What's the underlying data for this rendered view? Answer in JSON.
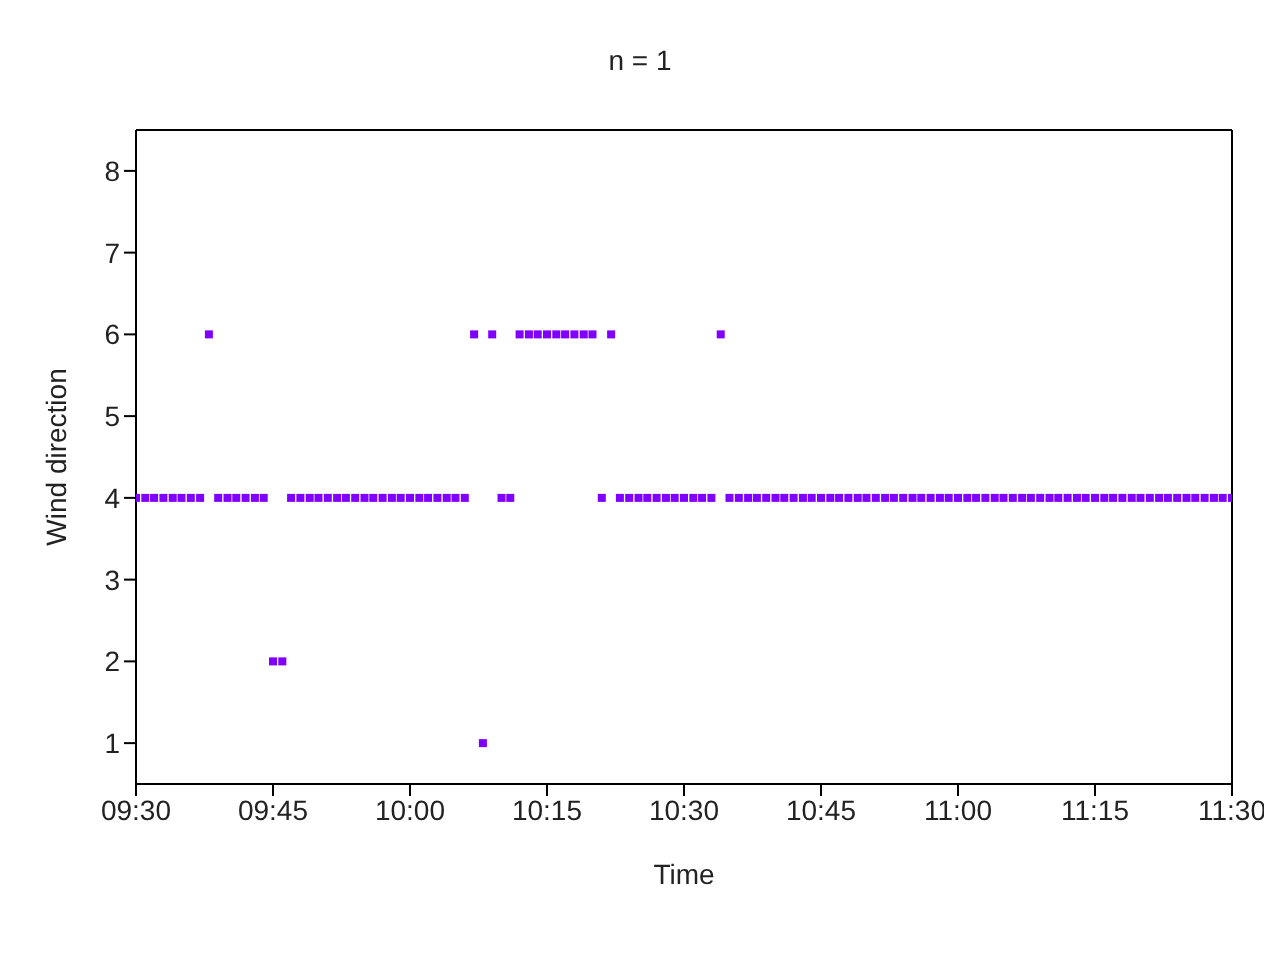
{
  "chart_data": {
    "type": "scatter",
    "title": "n = 1",
    "xlabel": "Time",
    "ylabel": "Wind direction",
    "xlim": [
      9.5,
      11.5
    ],
    "xticks": [
      {
        "value": 9.5,
        "label": "09:30"
      },
      {
        "value": 9.75,
        "label": "09:45"
      },
      {
        "value": 10,
        "label": "10:00"
      },
      {
        "value": 10.25,
        "label": "10:15"
      },
      {
        "value": 10.5,
        "label": "10:30"
      },
      {
        "value": 10.75,
        "label": "10:45"
      },
      {
        "value": 11,
        "label": "11:00"
      },
      {
        "value": 11.25,
        "label": "11:15"
      },
      {
        "value": 11.5,
        "label": "11:30"
      }
    ],
    "ylim": [
      0.5,
      8.5
    ],
    "yticks": [
      1,
      2,
      3,
      4,
      5,
      6,
      7,
      8
    ],
    "grid": false,
    "legend": false,
    "marker": "square",
    "x": [
      9.5,
      9.517,
      9.533,
      9.55,
      9.567,
      9.583,
      9.6,
      9.617,
      9.633,
      9.65,
      9.667,
      9.683,
      9.7,
      9.717,
      9.733,
      9.75,
      9.767,
      9.783,
      9.8,
      9.817,
      9.833,
      9.85,
      9.867,
      9.883,
      9.9,
      9.917,
      9.933,
      9.95,
      9.967,
      9.983,
      10,
      10.017,
      10.033,
      10.05,
      10.067,
      10.083,
      10.1,
      10.117,
      10.133,
      10.15,
      10.167,
      10.183,
      10.2,
      10.217,
      10.233,
      10.25,
      10.267,
      10.283,
      10.3,
      10.317,
      10.333,
      10.35,
      10.367,
      10.383,
      10.4,
      10.417,
      10.433,
      10.45,
      10.467,
      10.483,
      10.5,
      10.517,
      10.533,
      10.55,
      10.567,
      10.583,
      10.6,
      10.617,
      10.633,
      10.65,
      10.667,
      10.683,
      10.7,
      10.717,
      10.733,
      10.75,
      10.767,
      10.783,
      10.8,
      10.817,
      10.833,
      10.85,
      10.867,
      10.883,
      10.9,
      10.917,
      10.933,
      10.95,
      10.967,
      10.983,
      11,
      11.017,
      11.033,
      11.05,
      11.067,
      11.083,
      11.1,
      11.117,
      11.133,
      11.15,
      11.167,
      11.183,
      11.2,
      11.217,
      11.233,
      11.25,
      11.267,
      11.283,
      11.3,
      11.317,
      11.333,
      11.35,
      11.367,
      11.383,
      11.4,
      11.417,
      11.433,
      11.45,
      11.467,
      11.483,
      11.5
    ],
    "series": [
      {
        "color": "#7f00ff",
        "values": [
          4,
          4,
          4,
          4,
          4,
          4,
          4,
          4,
          6,
          4,
          4,
          4,
          4,
          4,
          4,
          2,
          2,
          4,
          4,
          4,
          4,
          4,
          4,
          4,
          4,
          4,
          4,
          4,
          4,
          4,
          4,
          4,
          4,
          4,
          4,
          4,
          4,
          6,
          1,
          6,
          4,
          4,
          6,
          6,
          6,
          6,
          6,
          6,
          6,
          6,
          6,
          4,
          6,
          4,
          4,
          4,
          4,
          4,
          4,
          4,
          4,
          4,
          4,
          4,
          6,
          4,
          4,
          4,
          4,
          4,
          4,
          4,
          4,
          4,
          4,
          4,
          4,
          4,
          4,
          4,
          4,
          4,
          4,
          4,
          4,
          4,
          4,
          4,
          4,
          4,
          4,
          4,
          4,
          4,
          4,
          4,
          4,
          4,
          4,
          4,
          4,
          4,
          4,
          4,
          4,
          4,
          4,
          4,
          4,
          4,
          4,
          4,
          4,
          4,
          4,
          4,
          4,
          4,
          4,
          4,
          4
        ]
      }
    ]
  }
}
